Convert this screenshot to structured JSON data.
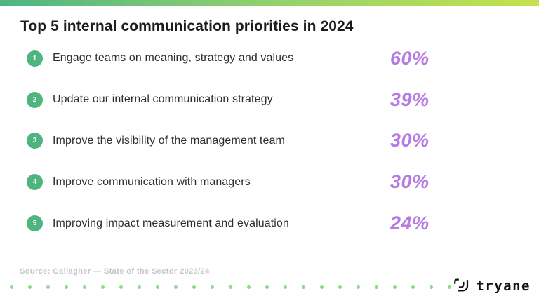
{
  "title": "Top 5 internal communication priorities in 2024",
  "items": [
    {
      "rank": "1",
      "label": "Engage teams on meaning, strategy and values",
      "value": "60%"
    },
    {
      "rank": "2",
      "label": "Update our internal communication strategy",
      "value": "39%"
    },
    {
      "rank": "3",
      "label": "Improve the visibility of the management team",
      "value": "30%"
    },
    {
      "rank": "4",
      "label": "Improve communication with managers",
      "value": "30%"
    },
    {
      "rank": "5",
      "label": "Improving impact measurement and evaluation",
      "value": "24%"
    }
  ],
  "footer": {
    "source": "Source: Gallagher — State of the Sector 2023/24",
    "dot_count": 25,
    "logo_text": "tryane"
  },
  "colors": {
    "bar_gradient_start": "#4db583",
    "bar_gradient_mid": "#93d06e",
    "bar_gradient_end": "#c4e24c",
    "rank_circle": "#4eb57f",
    "percent": "#b57be2",
    "title_text": "#1c1c1e",
    "body_text": "#2d2d2f",
    "source_text": "#c6c6c6",
    "dots": "#90d98b"
  },
  "chart_data": {
    "type": "table",
    "title": "Top 5 internal communication priorities in 2024",
    "categories": [
      "Engage teams on meaning, strategy and values",
      "Update our internal communication strategy",
      "Improve the visibility of the management team",
      "Improve communication with managers",
      "Improving impact measurement and evaluation"
    ],
    "values": [
      60,
      39,
      30,
      30,
      24
    ],
    "value_unit": "%",
    "source": "Source: Gallagher — State of the Sector 2023/24"
  }
}
